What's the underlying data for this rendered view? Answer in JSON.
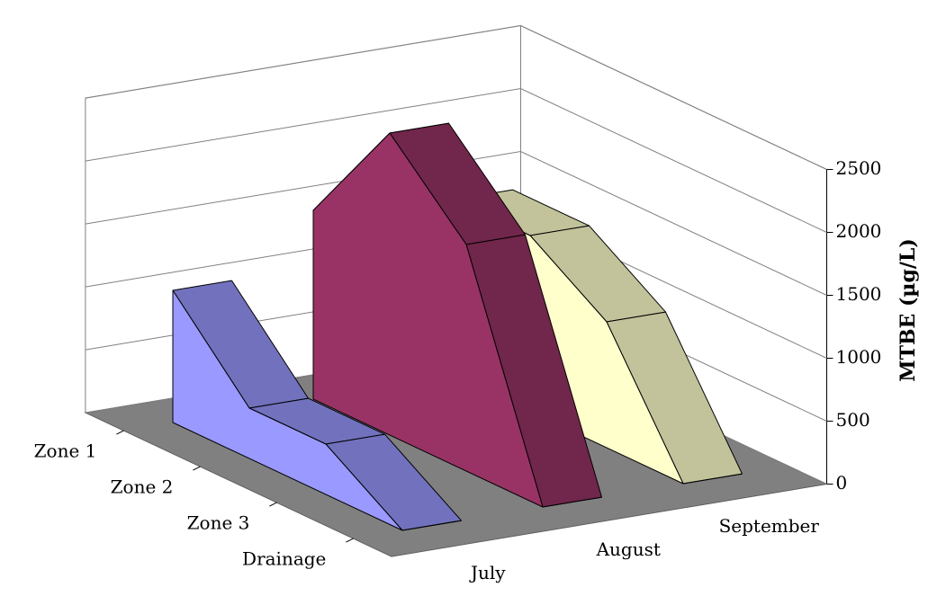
{
  "chart_data": {
    "type": "area3d",
    "categories": [
      "Zone 1",
      "Zone 2",
      "Zone 3",
      "Drainage"
    ],
    "series": [
      {
        "name": "July",
        "color": "#9999ff",
        "values": [
          1050,
          400,
          400,
          0
        ]
      },
      {
        "name": "August",
        "color": "#993366",
        "values": [
          1500,
          2400,
          1800,
          0
        ]
      },
      {
        "name": "September",
        "color": "#ffffcc",
        "values": [
          1400,
          1400,
          1000,
          0
        ]
      }
    ],
    "y_label": "MTBE (µg/L)",
    "ylim": [
      0,
      2500
    ],
    "yticks": [
      0,
      500,
      1000,
      1500,
      2000,
      2500
    ],
    "grid": true
  }
}
